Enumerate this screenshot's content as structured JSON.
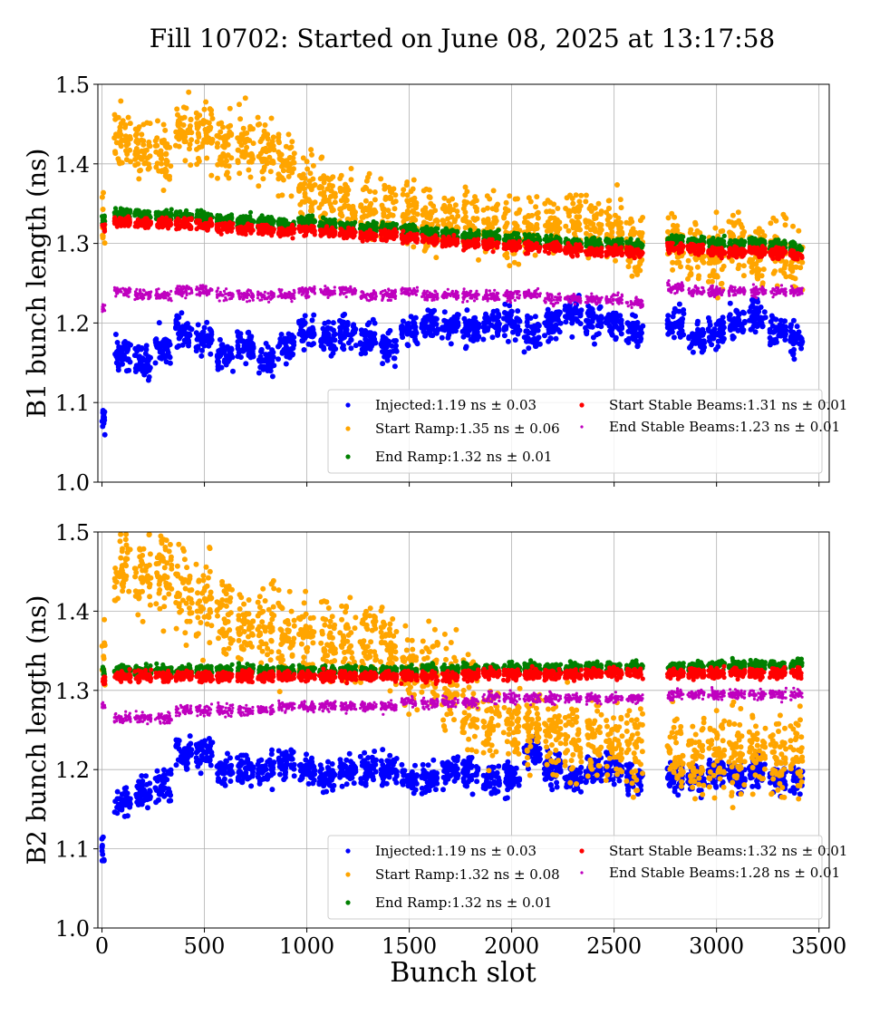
{
  "title": "Fill 10702: Started on June 08, 2025 at 13:17:58",
  "xlabel": "Bunch slot",
  "colors": {
    "injected": "#0000ff",
    "start_ramp": "#ffa500",
    "end_ramp": "#008000",
    "start_stable": "#ff0000",
    "end_stable": "#bf00bf",
    "grid": "#b0b0b0"
  },
  "chart_data": [
    {
      "type": "scatter",
      "ylabel": "B1 bunch length (ns)",
      "xlim": [
        -20,
        3550
      ],
      "ylim": [
        1.0,
        1.5
      ],
      "xticks": [
        0,
        500,
        1000,
        1500,
        2000,
        2500,
        3000,
        3500
      ],
      "yticks": [
        1.0,
        1.1,
        1.2,
        1.3,
        1.4,
        1.5
      ],
      "grid": true,
      "legend_position": "lower-right",
      "series": [
        {
          "key": "injected",
          "name": "Injected:1.19 ns ± 0.03",
          "mean": 1.19,
          "std": 0.03,
          "color": "#0000ff",
          "x": [
            5,
            100,
            200,
            300,
            400,
            500,
            600,
            700,
            800,
            900,
            1000,
            1100,
            1200,
            1300,
            1400,
            1500,
            1600,
            1700,
            1800,
            1900,
            2000,
            2100,
            2200,
            2300,
            2400,
            2500,
            2600,
            2800,
            2900,
            3000,
            3100,
            3200,
            3300,
            3400
          ],
          "y": [
            1.08,
            1.16,
            1.15,
            1.17,
            1.19,
            1.18,
            1.16,
            1.17,
            1.15,
            1.17,
            1.19,
            1.18,
            1.19,
            1.18,
            1.17,
            1.19,
            1.2,
            1.2,
            1.19,
            1.2,
            1.2,
            1.19,
            1.2,
            1.21,
            1.2,
            1.2,
            1.19,
            1.2,
            1.18,
            1.19,
            1.2,
            1.21,
            1.19,
            1.18
          ]
        },
        {
          "key": "start_ramp",
          "name": "Start Ramp:1.35 ns ± 0.06",
          "mean": 1.35,
          "std": 0.06,
          "color": "#ffa500",
          "x": [
            5,
            100,
            200,
            300,
            400,
            500,
            600,
            700,
            800,
            900,
            1000,
            1100,
            1200,
            1300,
            1400,
            1500,
            1600,
            1700,
            1800,
            1900,
            2000,
            2100,
            2200,
            2300,
            2400,
            2500,
            2600,
            2800,
            2900,
            3000,
            3100,
            3200,
            3300,
            3400
          ],
          "y": [
            1.33,
            1.43,
            1.42,
            1.41,
            1.44,
            1.44,
            1.42,
            1.42,
            1.42,
            1.4,
            1.37,
            1.36,
            1.35,
            1.34,
            1.34,
            1.34,
            1.33,
            1.33,
            1.33,
            1.32,
            1.32,
            1.32,
            1.32,
            1.33,
            1.32,
            1.32,
            1.3,
            1.3,
            1.29,
            1.28,
            1.3,
            1.29,
            1.29,
            1.28
          ]
        },
        {
          "key": "end_ramp",
          "name": "End Ramp:1.32 ns ± 0.01",
          "mean": 1.32,
          "std": 0.01,
          "color": "#008000",
          "x": [
            5,
            100,
            200,
            300,
            400,
            500,
            600,
            700,
            800,
            900,
            1000,
            1100,
            1200,
            1300,
            1400,
            1500,
            1600,
            1700,
            1800,
            1900,
            2000,
            2100,
            2200,
            2300,
            2400,
            2500,
            2600,
            2800,
            2900,
            3000,
            3100,
            3200,
            3300,
            3400
          ],
          "y": [
            1.33,
            1.338,
            1.337,
            1.335,
            1.335,
            1.333,
            1.33,
            1.328,
            1.327,
            1.325,
            1.327,
            1.325,
            1.322,
            1.32,
            1.32,
            1.317,
            1.315,
            1.313,
            1.31,
            1.31,
            1.307,
            1.305,
            1.303,
            1.3,
            1.3,
            1.3,
            1.298,
            1.305,
            1.303,
            1.3,
            1.3,
            1.3,
            1.298,
            1.295
          ]
        },
        {
          "key": "start_stable",
          "name": "Start Stable Beams:1.31 ns ± 0.01",
          "mean": 1.31,
          "std": 0.01,
          "color": "#ff0000",
          "x": [
            5,
            100,
            200,
            300,
            400,
            500,
            600,
            700,
            800,
            900,
            1000,
            1100,
            1200,
            1300,
            1400,
            1500,
            1600,
            1700,
            1800,
            1900,
            2000,
            2100,
            2200,
            2300,
            2400,
            2500,
            2600,
            2800,
            2900,
            3000,
            3100,
            3200,
            3300,
            3400
          ],
          "y": [
            1.32,
            1.328,
            1.326,
            1.325,
            1.325,
            1.323,
            1.32,
            1.318,
            1.317,
            1.315,
            1.317,
            1.315,
            1.313,
            1.31,
            1.31,
            1.307,
            1.305,
            1.303,
            1.3,
            1.3,
            1.298,
            1.296,
            1.294,
            1.292,
            1.29,
            1.29,
            1.288,
            1.295,
            1.293,
            1.29,
            1.29,
            1.29,
            1.288,
            1.285
          ]
        },
        {
          "key": "end_stable",
          "name": "End Stable Beams:1.23 ns ± 0.01",
          "mean": 1.23,
          "std": 0.01,
          "color": "#bf00bf",
          "x": [
            5,
            100,
            200,
            300,
            400,
            500,
            600,
            700,
            800,
            900,
            1000,
            1100,
            1200,
            1300,
            1400,
            1500,
            1600,
            1700,
            1800,
            1900,
            2000,
            2100,
            2200,
            2300,
            2400,
            2500,
            2600,
            2800,
            2900,
            3000,
            3100,
            3200,
            3300,
            3400
          ],
          "y": [
            1.22,
            1.24,
            1.235,
            1.235,
            1.24,
            1.24,
            1.235,
            1.235,
            1.235,
            1.235,
            1.24,
            1.24,
            1.24,
            1.235,
            1.235,
            1.24,
            1.235,
            1.235,
            1.235,
            1.235,
            1.235,
            1.235,
            1.23,
            1.23,
            1.23,
            1.23,
            1.225,
            1.245,
            1.24,
            1.24,
            1.24,
            1.24,
            1.24,
            1.24
          ]
        }
      ]
    },
    {
      "type": "scatter",
      "ylabel": "B2 bunch length (ns)",
      "xlim": [
        -20,
        3550
      ],
      "ylim": [
        1.0,
        1.5
      ],
      "xticks": [
        0,
        500,
        1000,
        1500,
        2000,
        2500,
        3000,
        3500
      ],
      "yticks": [
        1.0,
        1.1,
        1.2,
        1.3,
        1.4,
        1.5
      ],
      "grid": true,
      "legend_position": "lower-right",
      "series": [
        {
          "key": "injected",
          "name": "Injected:1.19 ns ± 0.03",
          "mean": 1.19,
          "std": 0.03,
          "color": "#0000ff",
          "x": [
            5,
            100,
            200,
            300,
            400,
            500,
            600,
            700,
            800,
            900,
            1000,
            1100,
            1200,
            1300,
            1400,
            1500,
            1600,
            1700,
            1800,
            1900,
            2000,
            2100,
            2200,
            2300,
            2400,
            2500,
            2600,
            2800,
            2900,
            3000,
            3100,
            3200,
            3300,
            3400
          ],
          "y": [
            1.1,
            1.16,
            1.17,
            1.18,
            1.22,
            1.22,
            1.2,
            1.2,
            1.2,
            1.21,
            1.2,
            1.19,
            1.2,
            1.2,
            1.2,
            1.19,
            1.19,
            1.2,
            1.2,
            1.19,
            1.19,
            1.22,
            1.2,
            1.19,
            1.2,
            1.2,
            1.19,
            1.19,
            1.19,
            1.2,
            1.19,
            1.2,
            1.19,
            1.19
          ]
        },
        {
          "key": "start_ramp",
          "name": "Start Ramp:1.32 ns ± 0.08",
          "mean": 1.32,
          "std": 0.08,
          "color": "#ffa500",
          "x": [
            5,
            100,
            200,
            300,
            400,
            500,
            600,
            700,
            800,
            900,
            1000,
            1100,
            1200,
            1300,
            1400,
            1500,
            1600,
            1700,
            1800,
            1900,
            2000,
            2100,
            2200,
            2300,
            2400,
            2500,
            2600,
            2800,
            2900,
            3000,
            3100,
            3200,
            3300,
            3400
          ],
          "y": [
            1.35,
            1.45,
            1.45,
            1.45,
            1.42,
            1.41,
            1.39,
            1.38,
            1.38,
            1.37,
            1.37,
            1.36,
            1.36,
            1.36,
            1.36,
            1.33,
            1.33,
            1.31,
            1.28,
            1.26,
            1.25,
            1.25,
            1.24,
            1.24,
            1.24,
            1.23,
            1.23,
            1.22,
            1.22,
            1.22,
            1.22,
            1.22,
            1.22,
            1.22
          ]
        },
        {
          "key": "end_ramp",
          "name": "End Ramp:1.32 ns ± 0.01",
          "mean": 1.32,
          "std": 0.01,
          "color": "#008000",
          "x": [
            5,
            100,
            200,
            300,
            400,
            500,
            600,
            700,
            800,
            900,
            1000,
            1100,
            1200,
            1300,
            1400,
            1500,
            1600,
            1700,
            1800,
            1900,
            2000,
            2100,
            2200,
            2300,
            2400,
            2500,
            2600,
            2800,
            2900,
            3000,
            3100,
            3200,
            3300,
            3400
          ],
          "y": [
            1.325,
            1.325,
            1.325,
            1.325,
            1.325,
            1.325,
            1.325,
            1.325,
            1.325,
            1.325,
            1.325,
            1.325,
            1.325,
            1.325,
            1.325,
            1.325,
            1.327,
            1.327,
            1.327,
            1.327,
            1.327,
            1.328,
            1.328,
            1.328,
            1.33,
            1.33,
            1.33,
            1.33,
            1.33,
            1.332,
            1.332,
            1.332,
            1.332,
            1.333
          ]
        },
        {
          "key": "start_stable",
          "name": "Start Stable Beams:1.32 ns ± 0.01",
          "mean": 1.32,
          "std": 0.01,
          "color": "#ff0000",
          "x": [
            5,
            100,
            200,
            300,
            400,
            500,
            600,
            700,
            800,
            900,
            1000,
            1100,
            1200,
            1300,
            1400,
            1500,
            1600,
            1700,
            1800,
            1900,
            2000,
            2100,
            2200,
            2300,
            2400,
            2500,
            2600,
            2800,
            2900,
            3000,
            3100,
            3200,
            3300,
            3400
          ],
          "y": [
            1.315,
            1.318,
            1.318,
            1.318,
            1.318,
            1.318,
            1.318,
            1.318,
            1.318,
            1.318,
            1.318,
            1.318,
            1.318,
            1.318,
            1.318,
            1.318,
            1.318,
            1.318,
            1.32,
            1.32,
            1.32,
            1.32,
            1.32,
            1.32,
            1.322,
            1.322,
            1.322,
            1.322,
            1.322,
            1.322,
            1.322,
            1.322,
            1.322,
            1.322
          ]
        },
        {
          "key": "end_stable",
          "name": "End Stable Beams:1.28 ns ± 0.01",
          "mean": 1.28,
          "std": 0.01,
          "color": "#bf00bf",
          "x": [
            5,
            100,
            200,
            300,
            400,
            500,
            600,
            700,
            800,
            900,
            1000,
            1100,
            1200,
            1300,
            1400,
            1500,
            1600,
            1700,
            1800,
            1900,
            2000,
            2100,
            2200,
            2300,
            2400,
            2500,
            2600,
            2800,
            2900,
            3000,
            3100,
            3200,
            3300,
            3400
          ],
          "y": [
            1.28,
            1.265,
            1.265,
            1.265,
            1.275,
            1.275,
            1.275,
            1.275,
            1.275,
            1.28,
            1.28,
            1.28,
            1.28,
            1.28,
            1.28,
            1.285,
            1.285,
            1.285,
            1.285,
            1.29,
            1.29,
            1.29,
            1.29,
            1.29,
            1.29,
            1.29,
            1.29,
            1.295,
            1.295,
            1.295,
            1.295,
            1.295,
            1.295,
            1.295
          ]
        }
      ]
    }
  ]
}
